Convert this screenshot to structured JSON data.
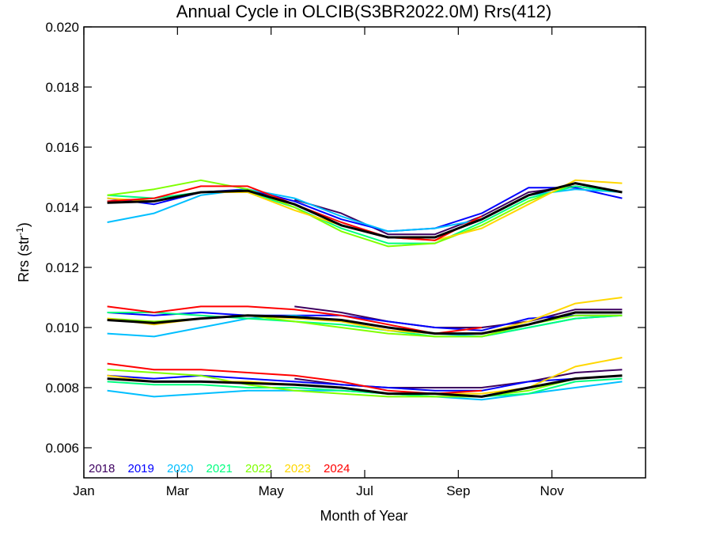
{
  "chart_data": {
    "type": "line",
    "title": "Annual Cycle in OLCIB(S3BR2022.0M) Rrs(412)",
    "xlabel": "Month of Year",
    "ylabel_main": "Rrs (str",
    "ylabel_sup": "-1",
    "ylabel_end": ")",
    "xlim": [
      1,
      13
    ],
    "ylim": [
      0.005,
      0.02
    ],
    "x_ticks": [
      {
        "x": 1,
        "label": "Jan"
      },
      {
        "x": 3,
        "label": "Mar"
      },
      {
        "x": 5,
        "label": "May"
      },
      {
        "x": 7,
        "label": "Jul"
      },
      {
        "x": 9,
        "label": "Sep"
      },
      {
        "x": 11,
        "label": "Nov"
      }
    ],
    "y_ticks": [
      "0.006",
      "0.008",
      "0.010",
      "0.012",
      "0.014",
      "0.016",
      "0.018",
      "0.020"
    ],
    "x": [
      1.5,
      2.5,
      3.5,
      4.5,
      5.5,
      6.5,
      7.5,
      8.5,
      9.5,
      10.5,
      11.5,
      12.5
    ],
    "series": [
      {
        "name": "2018",
        "color": "#3d0060",
        "groups": [
          [
            null,
            null,
            null,
            null,
            0.01425,
            0.0138,
            0.0131,
            0.0131,
            0.0137,
            0.0145,
            0.0147,
            0.0145
          ],
          [
            null,
            null,
            null,
            null,
            0.0107,
            0.0105,
            0.0102,
            0.01,
            0.01,
            0.0102,
            0.0106,
            0.0106
          ],
          [
            null,
            null,
            null,
            null,
            0.0083,
            0.0081,
            0.008,
            0.008,
            0.008,
            0.0082,
            0.0085,
            0.0086
          ]
        ]
      },
      {
        "name": "2019",
        "color": "#0000ff",
        "groups": [
          [
            0.0143,
            0.0141,
            0.0145,
            0.0146,
            0.0142,
            0.0136,
            0.0132,
            0.0133,
            0.0138,
            0.01465,
            0.01465,
            0.0143
          ],
          [
            0.0105,
            0.0104,
            0.0105,
            0.0104,
            0.0104,
            0.0104,
            0.0102,
            0.01,
            0.0099,
            0.0103,
            0.0104,
            0.0104
          ],
          [
            0.0084,
            0.0083,
            0.0084,
            0.0083,
            0.0082,
            0.0081,
            0.008,
            0.0079,
            0.0079,
            0.0082,
            0.0083,
            0.0084
          ]
        ]
      },
      {
        "name": "2020",
        "color": "#00bfff",
        "groups": [
          [
            0.0135,
            0.0138,
            0.0144,
            0.0146,
            0.0143,
            0.0137,
            0.0132,
            0.0133,
            0.0136,
            0.0144,
            0.0146,
            0.0145
          ],
          [
            0.0098,
            0.0097,
            0.01,
            0.0103,
            0.0104,
            0.0102,
            0.0099,
            0.0098,
            0.0097,
            0.01,
            0.0103,
            0.0104
          ],
          [
            0.0079,
            0.0077,
            0.0078,
            0.0079,
            0.0079,
            0.0079,
            0.0078,
            0.0077,
            0.0076,
            0.0078,
            0.008,
            0.0082
          ]
        ]
      },
      {
        "name": "2021",
        "color": "#00ff7f",
        "groups": [
          [
            0.0144,
            0.0143,
            0.0145,
            0.0145,
            0.014,
            0.0133,
            0.0128,
            0.0128,
            0.0135,
            0.0143,
            0.0147,
            0.0145
          ],
          [
            0.0105,
            0.0105,
            0.0104,
            0.0103,
            0.0102,
            0.0101,
            0.0099,
            0.0097,
            0.0097,
            0.01,
            0.0103,
            0.0104
          ],
          [
            0.0082,
            0.0081,
            0.0081,
            0.008,
            0.008,
            0.0079,
            0.0078,
            0.0077,
            0.0077,
            0.0078,
            0.0082,
            0.0083
          ]
        ]
      },
      {
        "name": "2022",
        "color": "#7fff00",
        "groups": [
          [
            0.0144,
            0.0146,
            0.0149,
            0.0146,
            0.014,
            0.0132,
            0.0127,
            0.0128,
            0.0134,
            0.0142,
            0.0148,
            0.0145
          ],
          [
            0.0103,
            0.0102,
            0.0103,
            0.0104,
            0.0102,
            0.01,
            0.0098,
            0.0097,
            0.0097,
            0.0101,
            0.0104,
            0.0104
          ],
          [
            0.0086,
            0.0085,
            0.0084,
            0.0081,
            0.0079,
            0.0078,
            0.0077,
            0.0077,
            0.0077,
            0.0079,
            0.0083,
            0.0084
          ]
        ]
      },
      {
        "name": "2023",
        "color": "#ffd700",
        "groups": [
          [
            0.0143,
            0.0142,
            0.0145,
            0.0145,
            0.0139,
            0.0134,
            0.013,
            0.0129,
            0.0133,
            0.0141,
            0.0149,
            0.0148
          ],
          [
            0.0103,
            0.0101,
            0.0103,
            0.0104,
            0.0103,
            0.0102,
            0.0099,
            0.0098,
            0.0098,
            0.0102,
            0.0108,
            0.011
          ],
          [
            0.0084,
            0.0082,
            0.0082,
            0.0082,
            0.0081,
            0.008,
            0.0078,
            0.0078,
            0.0078,
            0.008,
            0.0087,
            0.009
          ]
        ]
      },
      {
        "name": "2024",
        "color": "#ff0000",
        "groups": [
          [
            0.0142,
            0.0143,
            0.0147,
            0.0147,
            0.0141,
            0.0135,
            0.013,
            0.0129,
            0.0137,
            null,
            null,
            null
          ],
          [
            0.0107,
            0.0105,
            0.0107,
            0.0107,
            0.0106,
            0.0104,
            0.0101,
            0.0098,
            0.01,
            null,
            null,
            null
          ],
          [
            0.0088,
            0.0086,
            0.0086,
            0.0085,
            0.0084,
            0.0082,
            0.0079,
            0.0078,
            0.0079,
            null,
            null,
            null
          ]
        ]
      },
      {
        "name": "",
        "color": "#000000",
        "groups": [
          [
            0.01415,
            0.0142,
            0.0145,
            0.01455,
            0.0141,
            0.0134,
            0.013,
            0.013,
            0.0136,
            0.0144,
            0.0148,
            0.0145
          ],
          [
            0.01025,
            0.01015,
            0.0103,
            0.0104,
            0.01035,
            0.01025,
            0.01,
            0.0098,
            0.0098,
            0.0101,
            0.0105,
            0.0105
          ],
          [
            0.0083,
            0.0082,
            0.0082,
            0.00815,
            0.0081,
            0.008,
            0.0078,
            0.0078,
            0.0077,
            0.008,
            0.0083,
            0.0084
          ]
        ]
      }
    ]
  }
}
